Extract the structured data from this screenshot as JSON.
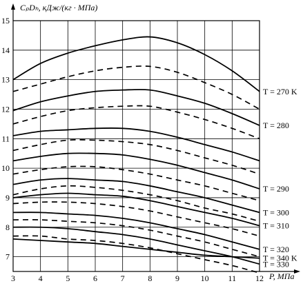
{
  "chart_data": {
    "type": "line",
    "ylabel": "CₚDₕ, кДж/(кг · МПа)",
    "xlabel": "P, МПа",
    "xlim": [
      3,
      12
    ],
    "ylim": [
      6.5,
      15
    ],
    "xticks": [
      3,
      4,
      5,
      6,
      7,
      8,
      9,
      10,
      11,
      12
    ],
    "yticks": [
      7,
      8,
      9,
      10,
      11,
      12,
      13,
      14,
      15
    ],
    "grid": true,
    "x": [
      3,
      4,
      5,
      6,
      7,
      8,
      9,
      10,
      11,
      12
    ],
    "series": [
      {
        "name": "T = 270 K",
        "style": "solid",
        "values": [
          13.0,
          13.55,
          13.9,
          14.15,
          14.35,
          14.45,
          14.25,
          13.85,
          13.3,
          12.6
        ]
      },
      {
        "style": "dashed",
        "values": [
          12.6,
          12.85,
          13.1,
          13.3,
          13.42,
          13.45,
          13.25,
          12.9,
          12.5,
          12.0
        ]
      },
      {
        "name": "T = 280",
        "style": "solid",
        "values": [
          11.95,
          12.25,
          12.45,
          12.6,
          12.65,
          12.65,
          12.45,
          12.2,
          11.85,
          11.45
        ]
      },
      {
        "style": "dashed",
        "values": [
          11.5,
          11.75,
          11.95,
          12.05,
          12.1,
          12.1,
          11.9,
          11.65,
          11.35,
          11.0
        ]
      },
      {
        "style": "solid",
        "values": [
          11.1,
          11.25,
          11.3,
          11.35,
          11.35,
          11.25,
          11.05,
          10.8,
          10.55,
          10.25
        ]
      },
      {
        "style": "dashed",
        "values": [
          10.6,
          10.8,
          10.95,
          10.95,
          10.9,
          10.8,
          10.6,
          10.35,
          10.1,
          9.8
        ]
      },
      {
        "name": "T = 290",
        "style": "solid",
        "values": [
          10.25,
          10.4,
          10.5,
          10.5,
          10.45,
          10.3,
          10.1,
          9.85,
          9.6,
          9.3
        ]
      },
      {
        "style": "dashed",
        "values": [
          9.8,
          9.95,
          10.05,
          10.05,
          9.95,
          9.8,
          9.6,
          9.4,
          9.15,
          8.9
        ]
      },
      {
        "name": "T = 300",
        "style": "solid",
        "values": [
          9.45,
          9.6,
          9.65,
          9.6,
          9.55,
          9.4,
          9.2,
          9.0,
          8.75,
          8.5
        ]
      },
      {
        "style": "dashed",
        "values": [
          9.1,
          9.3,
          9.4,
          9.35,
          9.25,
          9.1,
          8.9,
          8.65,
          8.45,
          8.2
        ]
      },
      {
        "name": "T = 310",
        "style": "solid",
        "values": [
          9.0,
          9.1,
          9.15,
          9.1,
          9.05,
          8.9,
          8.7,
          8.5,
          8.3,
          8.05
        ]
      },
      {
        "style": "dashed",
        "values": [
          8.8,
          8.85,
          8.85,
          8.8,
          8.7,
          8.55,
          8.35,
          8.15,
          7.95,
          7.7
        ]
      },
      {
        "name": "T = 320",
        "style": "solid",
        "values": [
          8.5,
          8.5,
          8.45,
          8.4,
          8.3,
          8.15,
          7.95,
          7.75,
          7.5,
          7.25
        ]
      },
      {
        "style": "dashed",
        "values": [
          8.25,
          8.25,
          8.2,
          8.15,
          8.05,
          7.9,
          7.7,
          7.5,
          7.25,
          7.0
        ]
      },
      {
        "name": "T = 330",
        "style": "solid",
        "values": [
          8.0,
          8.0,
          7.95,
          7.85,
          7.75,
          7.6,
          7.4,
          7.2,
          7.0,
          6.75
        ]
      },
      {
        "style": "dashed",
        "values": [
          7.7,
          7.7,
          7.6,
          7.55,
          7.45,
          7.3,
          7.1,
          6.9,
          6.7,
          6.45
        ]
      },
      {
        "name": "T = 340 K",
        "style": "solid",
        "values": [
          7.6,
          7.55,
          7.5,
          7.45,
          7.35,
          7.25,
          7.15,
          7.05,
          7.0,
          6.95
        ]
      }
    ]
  }
}
